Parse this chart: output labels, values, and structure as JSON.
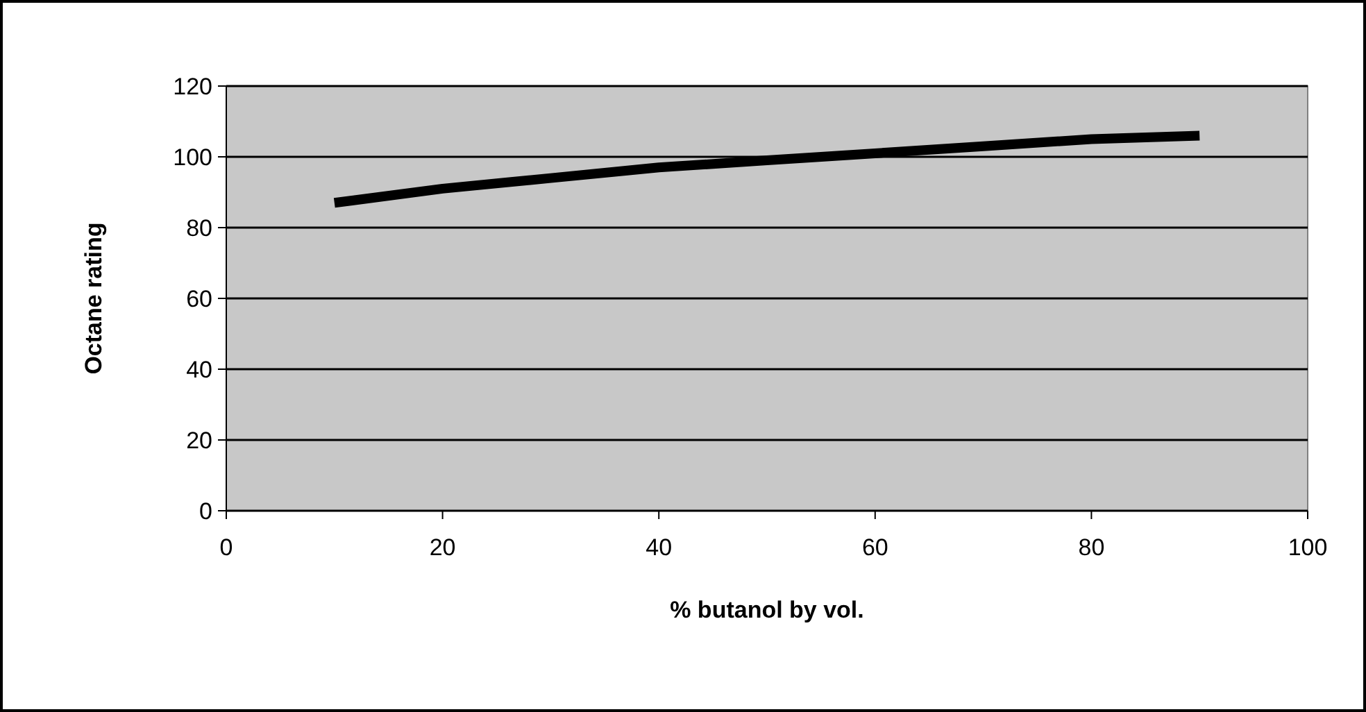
{
  "chart_data": {
    "type": "line",
    "xlabel": "% butanol by vol.",
    "ylabel": "Octane rating",
    "x": [
      10,
      20,
      30,
      40,
      50,
      60,
      70,
      80,
      90
    ],
    "series": [
      {
        "color": "#000000",
        "values": [
          87,
          91,
          94,
          97,
          99,
          101,
          103,
          105,
          106
        ]
      }
    ],
    "xlim": [
      0,
      100
    ],
    "xticks": [
      0,
      20,
      40,
      60,
      80,
      100
    ],
    "ylim": [
      0,
      120
    ],
    "yticks": [
      0,
      20,
      40,
      60,
      80,
      100,
      120
    ],
    "grid": "y",
    "marker": "none",
    "line_style": "solid"
  }
}
